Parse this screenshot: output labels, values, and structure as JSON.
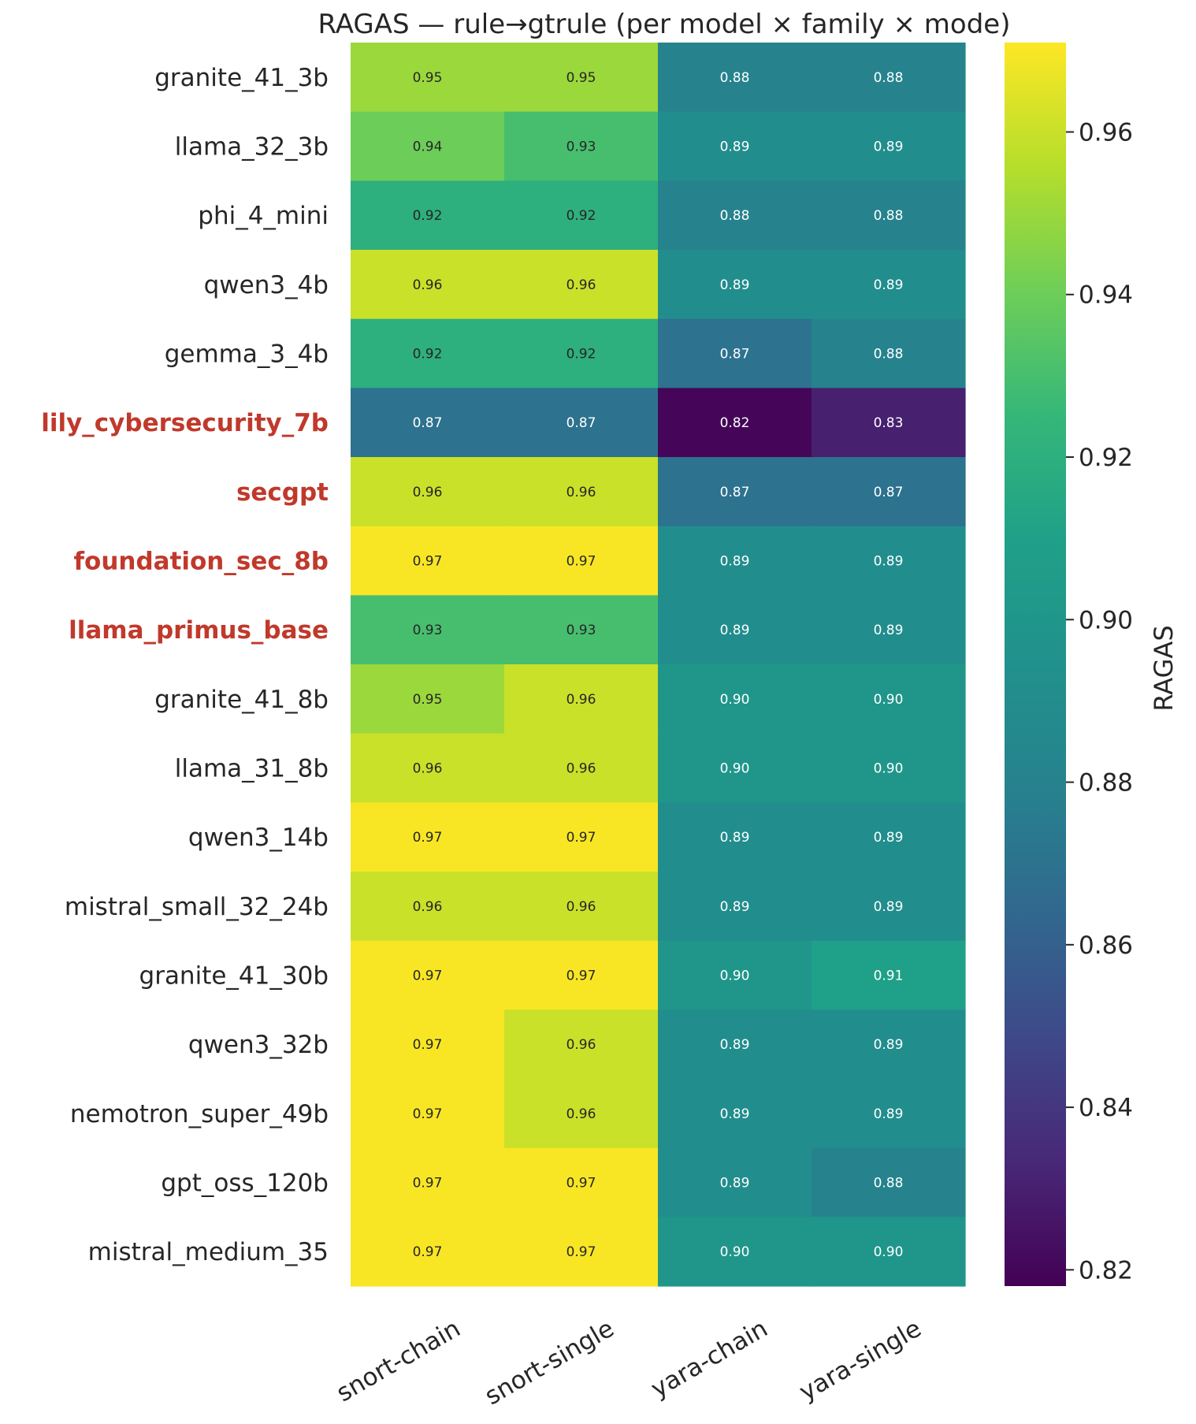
{
  "chart_data": {
    "type": "heatmap",
    "title": "RAGAS  —  rule→gtrule  (per model × family × mode)",
    "columns": [
      "snort-chain",
      "snort-single",
      "yara-chain",
      "yara-single"
    ],
    "rows": [
      {
        "name": "granite_41_3b",
        "highlight": false,
        "values": [
          0.95,
          0.95,
          0.88,
          0.88
        ]
      },
      {
        "name": "llama_32_3b",
        "highlight": false,
        "values": [
          0.94,
          0.93,
          0.89,
          0.89
        ]
      },
      {
        "name": "phi_4_mini",
        "highlight": false,
        "values": [
          0.92,
          0.92,
          0.88,
          0.88
        ]
      },
      {
        "name": "qwen3_4b",
        "highlight": false,
        "values": [
          0.96,
          0.96,
          0.89,
          0.89
        ]
      },
      {
        "name": "gemma_3_4b",
        "highlight": false,
        "values": [
          0.92,
          0.92,
          0.87,
          0.88
        ]
      },
      {
        "name": "lily_cybersecurity_7b",
        "highlight": true,
        "values": [
          0.87,
          0.87,
          0.82,
          0.83
        ]
      },
      {
        "name": "secgpt",
        "highlight": true,
        "values": [
          0.96,
          0.96,
          0.87,
          0.87
        ]
      },
      {
        "name": "foundation_sec_8b",
        "highlight": true,
        "values": [
          0.97,
          0.97,
          0.89,
          0.89
        ]
      },
      {
        "name": "llama_primus_base",
        "highlight": true,
        "values": [
          0.93,
          0.93,
          0.89,
          0.89
        ]
      },
      {
        "name": "granite_41_8b",
        "highlight": false,
        "values": [
          0.95,
          0.96,
          0.9,
          0.9
        ]
      },
      {
        "name": "llama_31_8b",
        "highlight": false,
        "values": [
          0.96,
          0.96,
          0.9,
          0.9
        ]
      },
      {
        "name": "qwen3_14b",
        "highlight": false,
        "values": [
          0.97,
          0.97,
          0.89,
          0.89
        ]
      },
      {
        "name": "mistral_small_32_24b",
        "highlight": false,
        "values": [
          0.96,
          0.96,
          0.89,
          0.89
        ]
      },
      {
        "name": "granite_41_30b",
        "highlight": false,
        "values": [
          0.97,
          0.97,
          0.9,
          0.91
        ]
      },
      {
        "name": "qwen3_32b",
        "highlight": false,
        "values": [
          0.97,
          0.96,
          0.89,
          0.89
        ]
      },
      {
        "name": "nemotron_super_49b",
        "highlight": false,
        "values": [
          0.97,
          0.96,
          0.89,
          0.89
        ]
      },
      {
        "name": "gpt_oss_120b",
        "highlight": false,
        "values": [
          0.97,
          0.97,
          0.89,
          0.88
        ]
      },
      {
        "name": "mistral_medium_35",
        "highlight": false,
        "values": [
          0.97,
          0.97,
          0.9,
          0.9
        ]
      }
    ],
    "colorbar": {
      "label": "RAGAS",
      "range": [
        0.818,
        0.971
      ],
      "ticks": [
        0.82,
        0.84,
        0.86,
        0.88,
        0.9,
        0.92,
        0.94,
        0.96
      ],
      "tick_labels": [
        "0.82",
        "0.84",
        "0.86",
        "0.88",
        "0.90",
        "0.92",
        "0.94",
        "0.96"
      ],
      "colormap": "viridis"
    },
    "value_format": "2 decimals",
    "highlight_color": "#c0392b"
  }
}
